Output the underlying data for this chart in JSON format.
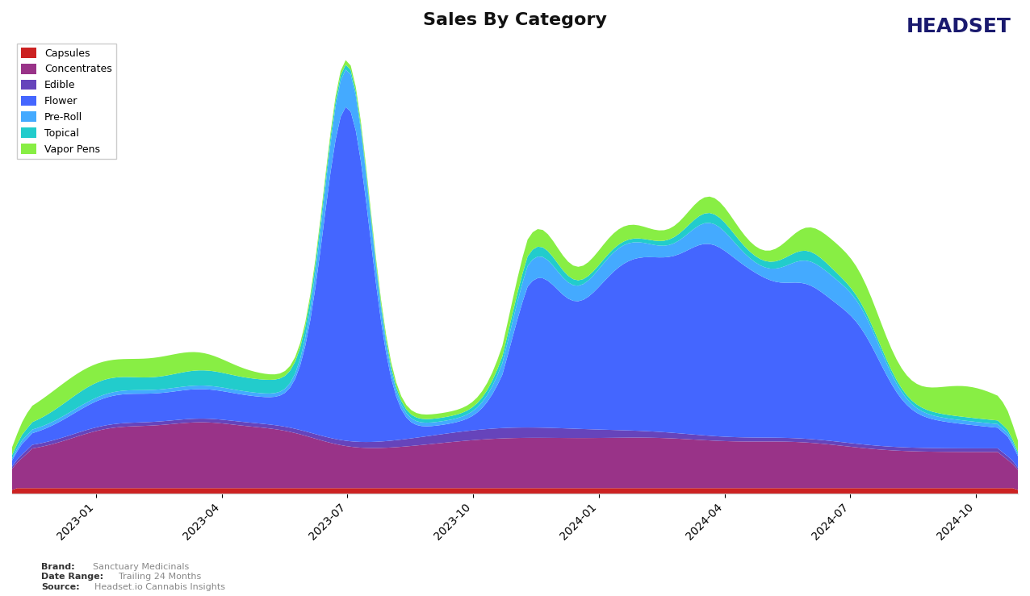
{
  "title": "Sales By Category",
  "categories": [
    "Capsules",
    "Concentrates",
    "Edible",
    "Flower",
    "Pre-Roll",
    "Topical",
    "Vapor Pens"
  ],
  "colors": [
    "#cc2222",
    "#993388",
    "#6644bb",
    "#4466ff",
    "#44aaff",
    "#22cccc",
    "#88ee44"
  ],
  "x_labels": [
    "2023-01",
    "2023-04",
    "2023-07",
    "2023-10",
    "2024-01",
    "2024-04",
    "2024-07",
    "2024-10"
  ],
  "brand": "Sanctuary Medicinals",
  "date_range": "Trailing 24 Months",
  "source": "Headset.io Cannabis Insights",
  "background_color": "#ffffff",
  "n_points": 200
}
